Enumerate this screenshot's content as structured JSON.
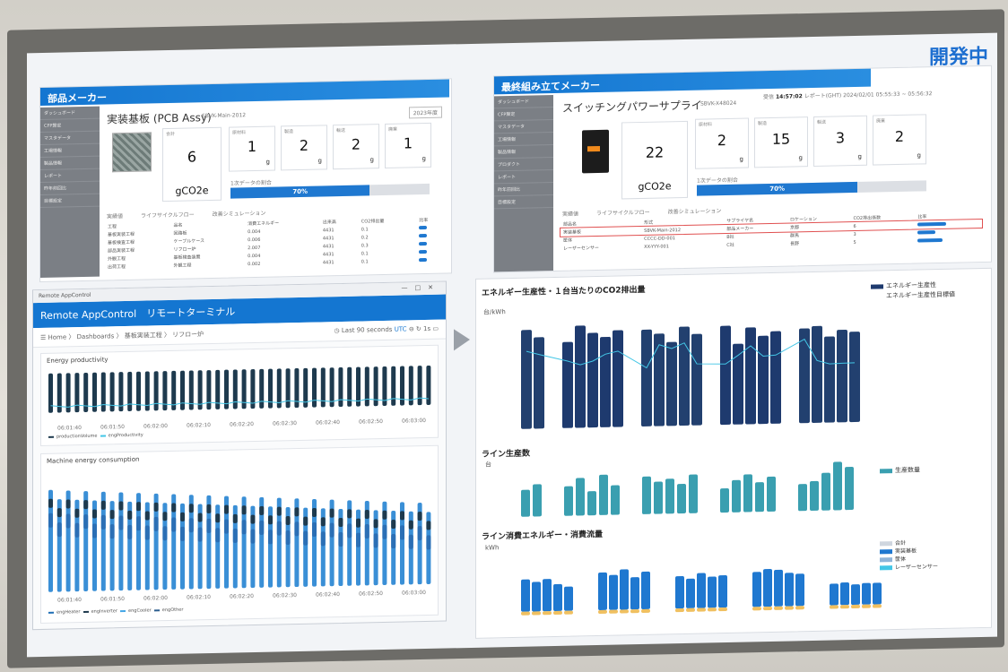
{
  "badge": "開発中",
  "left_panel": {
    "title": "部品メーカー",
    "sidebar": [
      "ダッシュボード",
      "CFP算定",
      "マスタデータ",
      "工場情報",
      "製品情報",
      "レポート",
      "昨年前回比",
      "目標設定"
    ],
    "product_title": "実装基板 (PCB Assy)",
    "product_code": "SBVK-Main-2012",
    "year_select": "2023年度",
    "total_label": "合計",
    "total_value": "6",
    "total_unit": "gCO2e",
    "kpis": [
      {
        "label": "原材料",
        "value": "1",
        "unit": "g"
      },
      {
        "label": "製造",
        "value": "2",
        "unit": "g"
      },
      {
        "label": "輸送",
        "value": "2",
        "unit": "g"
      },
      {
        "label": "廃棄",
        "value": "1",
        "unit": "g"
      }
    ],
    "progress_caption": "1次データの割合",
    "progress_text": "70%",
    "progress_value": 0.7,
    "tabs": [
      "実績値",
      "ライフサイクルフロー",
      "改善シミュレーション"
    ],
    "table_headers": [
      "工程",
      "品名",
      "消費エネルギー",
      "出来高",
      "CO2排出量",
      "比率"
    ],
    "table_rows": [
      [
        "基板実装工程",
        "回路板",
        "0.004",
        "4431",
        "0.1"
      ],
      [
        "基板検査工程",
        "ケーブルケース",
        "0.006",
        "4431",
        "0.2"
      ],
      [
        "部品実装工程",
        "リフロー炉",
        "2.007",
        "4431",
        "0.3"
      ],
      [
        "外観工程",
        "基板検査装置",
        "0.004",
        "4431",
        "0.1"
      ],
      [
        "出荷工程",
        "外観工程",
        "0.002",
        "4431",
        "0.1"
      ]
    ]
  },
  "right_panel": {
    "title": "最終組み立てメーカー",
    "product_title": "スイッチングパワーサプライ",
    "product_code": "SBVK-X48024",
    "received_label": "受信",
    "received_time": "14:57:02",
    "report_label": "レポート(GHT)",
    "report_time": "2024/02/01 05:55:33 ~ 05:56:32",
    "sidebar": [
      "ダッシュボード",
      "CFP算定",
      "マスタデータ",
      "工場情報",
      "製品情報",
      "プロダクト",
      "レポート",
      "昨年前回比",
      "目標設定"
    ],
    "total_value": "22",
    "total_unit": "gCO2e",
    "kpis": [
      {
        "label": "原材料",
        "value": "2",
        "unit": "g"
      },
      {
        "label": "製造",
        "value": "15",
        "unit": "g"
      },
      {
        "label": "輸送",
        "value": "3",
        "unit": "g"
      },
      {
        "label": "廃棄",
        "value": "2",
        "unit": "g"
      }
    ],
    "progress_caption": "1次データの割合",
    "progress_text": "70%",
    "progress_value": 0.7,
    "tabs": [
      "実績値",
      "ライフサイクルフロー",
      "改善シミュレーション"
    ],
    "table_headers": [
      "部品名",
      "形式",
      "サプライヤ名",
      "ロケーション",
      "CO2排出係数",
      "比率"
    ],
    "table_rows": [
      [
        "実装基板",
        "SBVK-Main-2012",
        "部品メーカー",
        "京都",
        "6"
      ],
      [
        "筐体",
        "CCCC-DD-001",
        "B社",
        "群馬",
        "3"
      ],
      [
        "レーザーセンサー",
        "XX-YYY-001",
        "C社",
        "長野",
        "5"
      ]
    ]
  },
  "remote": {
    "window_title": "Remote AppControl",
    "app_title": "Remote AppControl　リモートターミナル",
    "breadcrumb": "Home  〉 Dashboards 〉 基板実装工程 〉 リフロー炉",
    "time_range": "Last 90 seconds",
    "tz": "UTC",
    "refresh": "1s",
    "chart1_title": "Energy productivity",
    "chart1_x": [
      "06:01:40",
      "06:01:50",
      "06:02:00",
      "06:02:10",
      "06:02:20",
      "06:02:30",
      "06:02:40",
      "06:02:50",
      "06:03:00"
    ],
    "chart1_legend": [
      "productionVolume",
      "engProductivity"
    ],
    "chart2_title": "Machine energy consumption",
    "chart2_x": [
      "06:01:40",
      "06:01:50",
      "06:02:00",
      "06:02:10",
      "06:02:20",
      "06:02:30",
      "06:02:40",
      "06:02:50",
      "06:03:00"
    ],
    "chart2_legend": [
      "engHeater",
      "engInverter",
      "engCooler",
      "engOther"
    ]
  },
  "right_charts": {
    "c1_title": "エネルギー生産性・１台当たりのCO2排出量",
    "c1_unit": "台/kWh",
    "c1_legend": [
      "エネルギー生産性",
      "エネルギー生産性目標値"
    ],
    "c2_title": "ライン生産数",
    "c2_unit": "台",
    "c2_legend": [
      "生産数量"
    ],
    "c3_title": "ライン消費エネルギー・消費流量",
    "c3_unit": "kWh",
    "c3_legend": [
      "合計",
      "実装基板",
      "筐体",
      "レーザーセンサー"
    ]
  },
  "colors": {
    "accent": "#1476d1",
    "navy": "#1e3a6e",
    "teal": "#3a9fb0",
    "cyan": "#43c6e6"
  }
}
